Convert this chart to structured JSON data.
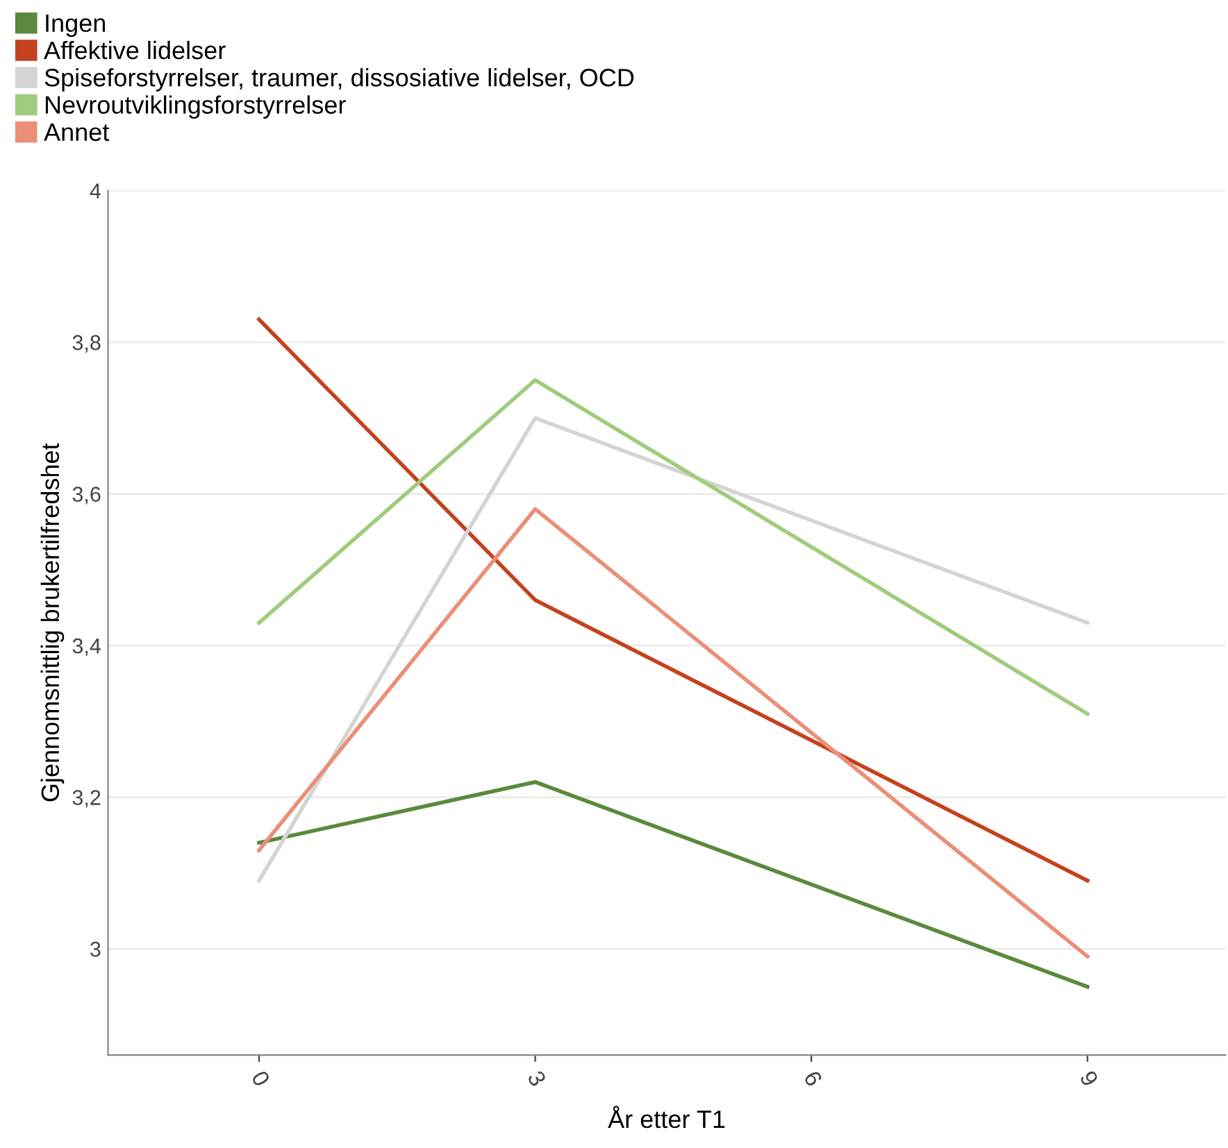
{
  "chart_data": {
    "type": "line",
    "xlabel": "År etter T1",
    "ylabel": "Gjennomsnittlig brukertilfredshet",
    "x": [
      0,
      3,
      9
    ],
    "series": [
      {
        "name": "Ingen",
        "color": "#5b8a3e",
        "values": [
          3.14,
          3.22,
          2.95
        ]
      },
      {
        "name": "Affektive lidelser",
        "color": "#c4421f",
        "values": [
          3.83,
          3.46,
          3.09
        ]
      },
      {
        "name": "Spiseforstyrrelser, traumer, dissosiative lidelser, OCD",
        "color": "#d4d4d4",
        "values": [
          3.09,
          3.7,
          3.43
        ]
      },
      {
        "name": "Nevroutviklingsforstyrrelser",
        "color": "#9fcc7c",
        "values": [
          3.43,
          3.75,
          3.31
        ]
      },
      {
        "name": "Annet",
        "color": "#eb8f78",
        "values": [
          3.13,
          3.58,
          2.99
        ]
      }
    ],
    "xlim": [
      -1.64,
      10.5
    ],
    "xticks": [
      0,
      3,
      6,
      9
    ],
    "ylim": [
      2.86,
      4
    ],
    "yticks": [
      3,
      {
        "value": 3.2,
        "label": "3,2"
      },
      {
        "value": 3.4,
        "label": "3,4"
      },
      {
        "value": 3.6,
        "label": "3,6"
      },
      {
        "value": 3.8,
        "label": "3,8"
      },
      4
    ],
    "grid": "y",
    "legend": "top left",
    "marker": "none",
    "line_style": "solid"
  }
}
